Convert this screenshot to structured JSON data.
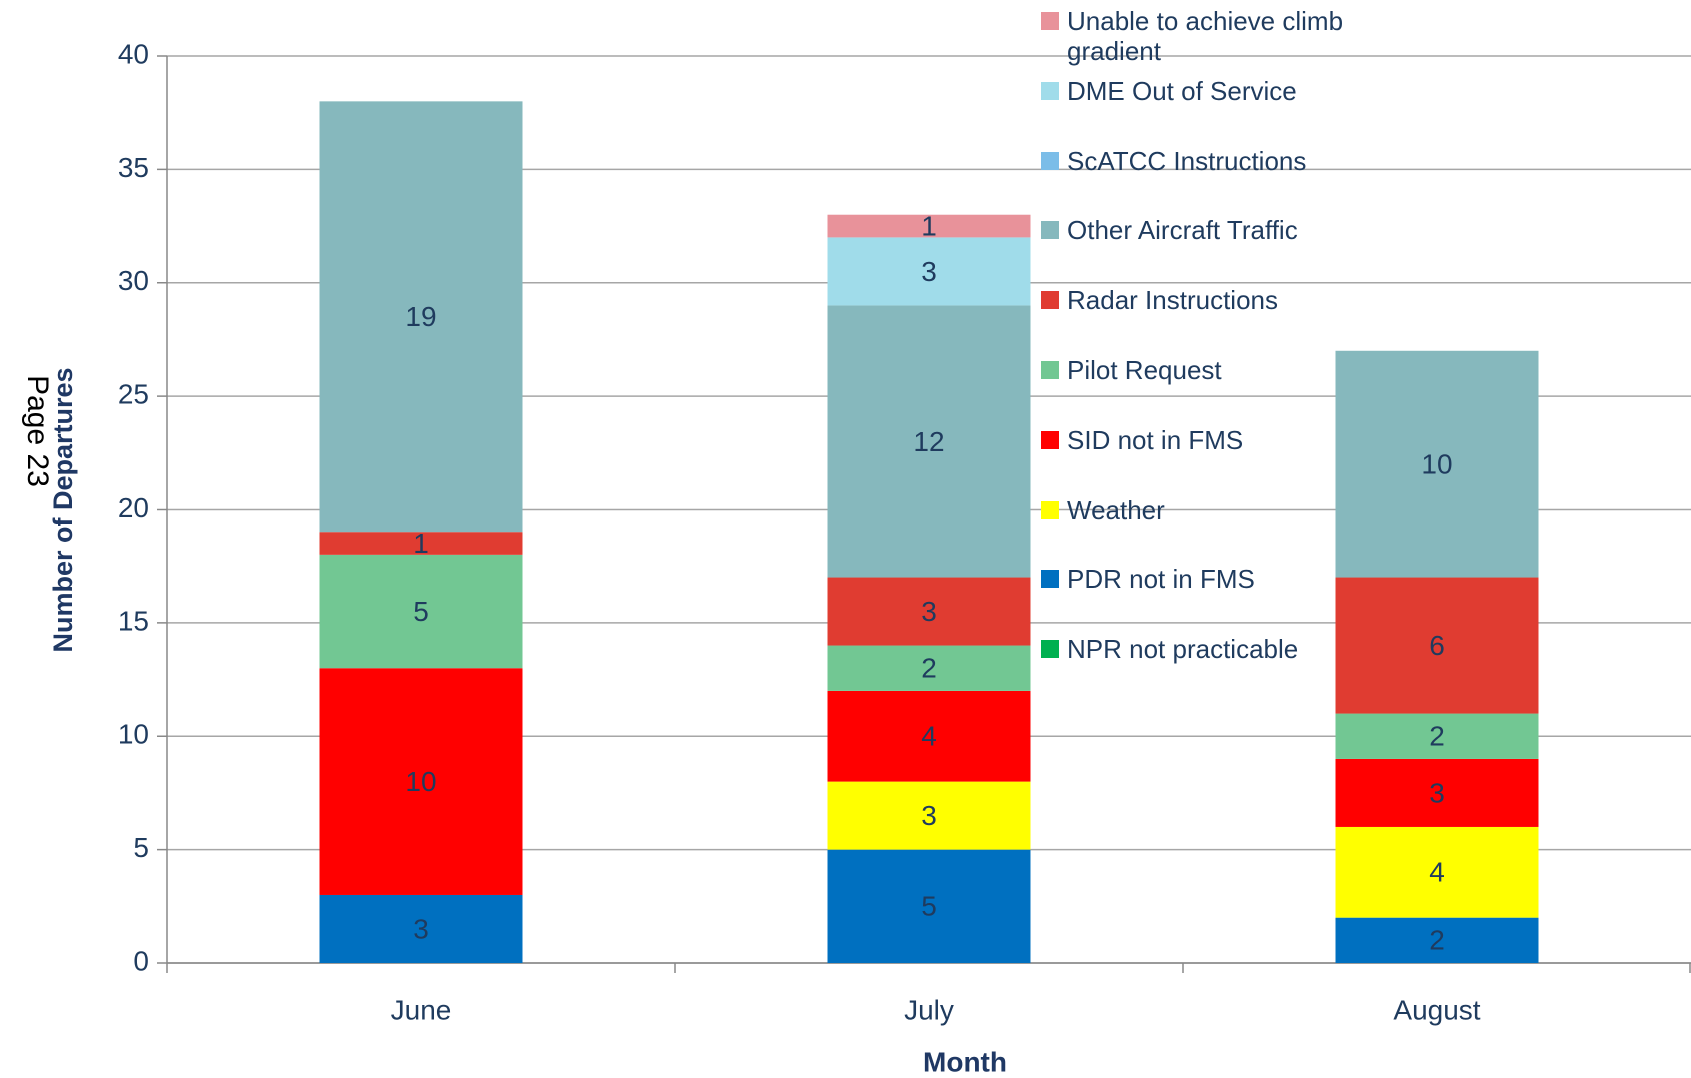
{
  "chart_data": {
    "type": "stacked_bar",
    "annotation": "Page 23",
    "xlabel": "Month",
    "ylabel": "Number of Departures",
    "categories": [
      "June",
      "July",
      "August"
    ],
    "series": [
      {
        "name": "NPR not practicable",
        "color": "#00b050",
        "values": [
          null,
          null,
          null
        ]
      },
      {
        "name": "PDR not in FMS",
        "color": "#0070c0",
        "values": [
          3,
          5,
          2
        ]
      },
      {
        "name": "Weather",
        "color": "#ffff00",
        "values": [
          null,
          3,
          4
        ]
      },
      {
        "name": "SID not in FMS",
        "color": "#ff0000",
        "values": [
          10,
          4,
          3
        ]
      },
      {
        "name": "Pilot Request",
        "color": "#72c793",
        "values": [
          5,
          2,
          2
        ]
      },
      {
        "name": "Radar Instructions",
        "color": "#e03c31",
        "values": [
          1,
          3,
          6
        ]
      },
      {
        "name": "Other Aircraft Traffic",
        "color": "#86b8bd",
        "values": [
          19,
          12,
          10
        ]
      },
      {
        "name": "ScATCC Instructions",
        "color": "#7bbde8",
        "values": [
          null,
          null,
          null
        ]
      },
      {
        "name": "DME Out of Service",
        "color": "#a0dcea",
        "values": [
          null,
          3,
          null
        ]
      },
      {
        "name": "Unable to achieve climb gradient",
        "color": "#e8929a",
        "values": [
          null,
          1,
          null
        ]
      }
    ],
    "ylim": [
      0,
      40
    ],
    "yticks": [
      0,
      5,
      10,
      15,
      20,
      25,
      30,
      35,
      40
    ],
    "grid": true
  }
}
